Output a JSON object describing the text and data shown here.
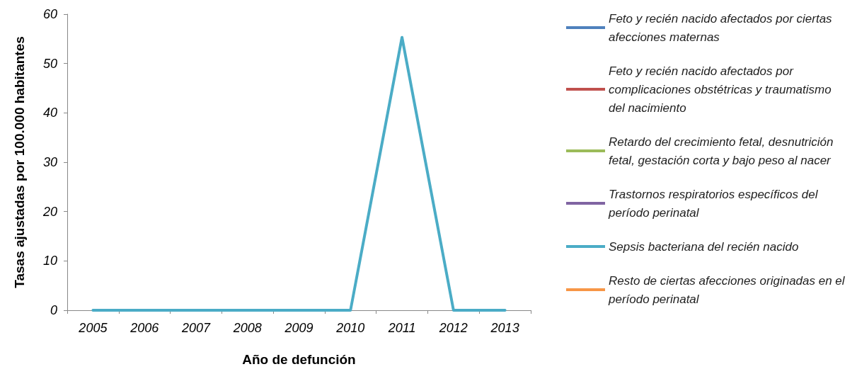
{
  "chart_data": {
    "type": "line",
    "xlabel": "Año de defunción",
    "ylabel": "Tasas ajustadas por 100.000 habitantes",
    "categories": [
      "2005",
      "2006",
      "2007",
      "2008",
      "2009",
      "2010",
      "2011",
      "2012",
      "2013"
    ],
    "ylim": [
      0,
      60
    ],
    "yticks": [
      0,
      10,
      20,
      30,
      40,
      50,
      60
    ],
    "grid": false,
    "legend": "right",
    "marker": "none",
    "line_style": "solid",
    "series": [
      {
        "name": "Feto y recién nacido afectados por ciertas afecciones maternas",
        "color": "#4f81bd",
        "values": [
          null,
          null,
          null,
          null,
          null,
          null,
          null,
          null,
          null
        ]
      },
      {
        "name": "Feto y recién nacido afectados por complicaciones obstétricas y traumatismo del nacimiento",
        "color": "#c0504d",
        "values": [
          null,
          null,
          null,
          null,
          null,
          null,
          null,
          null,
          null
        ]
      },
      {
        "name": "Retardo del crecimiento fetal, desnutrición fetal, gestación corta y bajo peso al nacer",
        "color": "#9bbb59",
        "values": [
          null,
          null,
          null,
          null,
          null,
          null,
          null,
          null,
          null
        ]
      },
      {
        "name": "Trastornos respiratorios específicos del período perinatal",
        "color": "#8064a2",
        "values": [
          null,
          null,
          null,
          null,
          null,
          null,
          null,
          null,
          null
        ]
      },
      {
        "name": "Sepsis bacteriana del recién nacido",
        "color": "#4bacc6",
        "values": [
          0,
          0,
          0,
          0,
          0,
          0,
          55.3,
          0,
          0
        ]
      },
      {
        "name": "Resto de ciertas afecciones originadas en el período perinatal",
        "color": "#f79646",
        "values": [
          null,
          null,
          null,
          null,
          null,
          null,
          null,
          null,
          null
        ]
      }
    ]
  }
}
